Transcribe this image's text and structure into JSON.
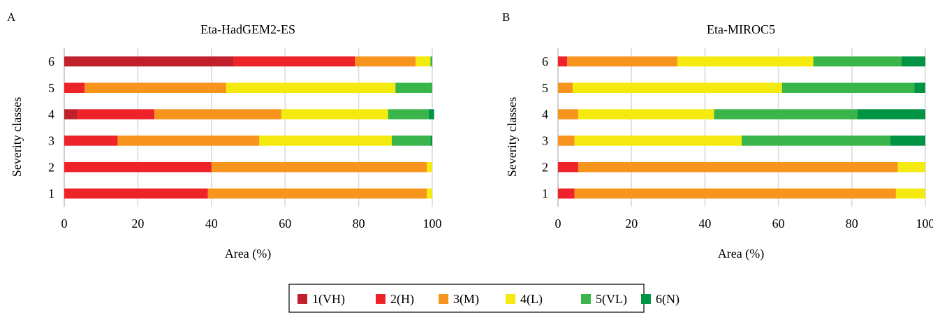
{
  "chart_data": [
    {
      "type": "bar",
      "orientation": "horizontal",
      "stacked": true,
      "panel_letter": "A",
      "title": "Eta-HadGEM2-ES",
      "xlabel": "Area (%)",
      "ylabel": "Severity classes",
      "xlim": [
        0,
        100
      ],
      "xticks": [
        "0",
        "20",
        "40",
        "60",
        "80",
        "100"
      ],
      "categories": [
        "1",
        "2",
        "3",
        "4",
        "5",
        "6"
      ],
      "grid": "vertical",
      "series": [
        {
          "name": "1(VH)",
          "values": [
            0,
            0,
            0,
            3.5,
            0,
            46
          ]
        },
        {
          "name": "2(H)",
          "values": [
            39,
            40,
            14.5,
            21,
            5.5,
            33
          ]
        },
        {
          "name": "3(M)",
          "values": [
            59.5,
            58.5,
            38.5,
            34.5,
            38.5,
            16.5
          ]
        },
        {
          "name": "4(L)",
          "values": [
            1.5,
            1.5,
            36,
            29,
            46,
            4
          ]
        },
        {
          "name": "5(VL)",
          "values": [
            0,
            0,
            10.5,
            11,
            10,
            0.5
          ]
        },
        {
          "name": "6(N)",
          "values": [
            0,
            0,
            0.5,
            1.5,
            0,
            0
          ]
        }
      ]
    },
    {
      "type": "bar",
      "orientation": "horizontal",
      "stacked": true,
      "panel_letter": "B",
      "title": "Eta-MIROC5",
      "xlabel": "Area (%)",
      "ylabel": "Severity classes",
      "xlim": [
        0,
        100
      ],
      "xticks": [
        "0",
        "20",
        "40",
        "60",
        "80",
        "100"
      ],
      "categories": [
        "1",
        "2",
        "3",
        "4",
        "5",
        "6"
      ],
      "grid": "vertical",
      "series": [
        {
          "name": "1(VH)",
          "values": [
            0,
            0,
            0,
            0,
            0,
            0
          ]
        },
        {
          "name": "2(H)",
          "values": [
            4.5,
            5.5,
            0,
            0,
            0,
            2.5
          ]
        },
        {
          "name": "3(M)",
          "values": [
            87.5,
            87,
            4.5,
            5.5,
            4,
            30
          ]
        },
        {
          "name": "4(L)",
          "values": [
            8,
            7.5,
            45.5,
            37,
            57,
            37
          ]
        },
        {
          "name": "5(VL)",
          "values": [
            0,
            0,
            40.5,
            39,
            36,
            24
          ]
        },
        {
          "name": "6(N)",
          "values": [
            0,
            0,
            9.5,
            18.5,
            3,
            6.5
          ]
        }
      ]
    }
  ],
  "legend": {
    "placement": "bottom-center",
    "items": [
      {
        "label": "1(VH)",
        "color": "#C0202A"
      },
      {
        "label": "2(H)",
        "color": "#EE2229"
      },
      {
        "label": "3(M)",
        "color": "#F7941E"
      },
      {
        "label": "4(L)",
        "color": "#F4EA0F"
      },
      {
        "label": "5(VL)",
        "color": "#39B54A"
      },
      {
        "label": "6(N)",
        "color": "#009444"
      }
    ]
  },
  "colors": {
    "grid": "#D9D9D9",
    "axis": "#BFBFBF",
    "text": "#000000"
  }
}
